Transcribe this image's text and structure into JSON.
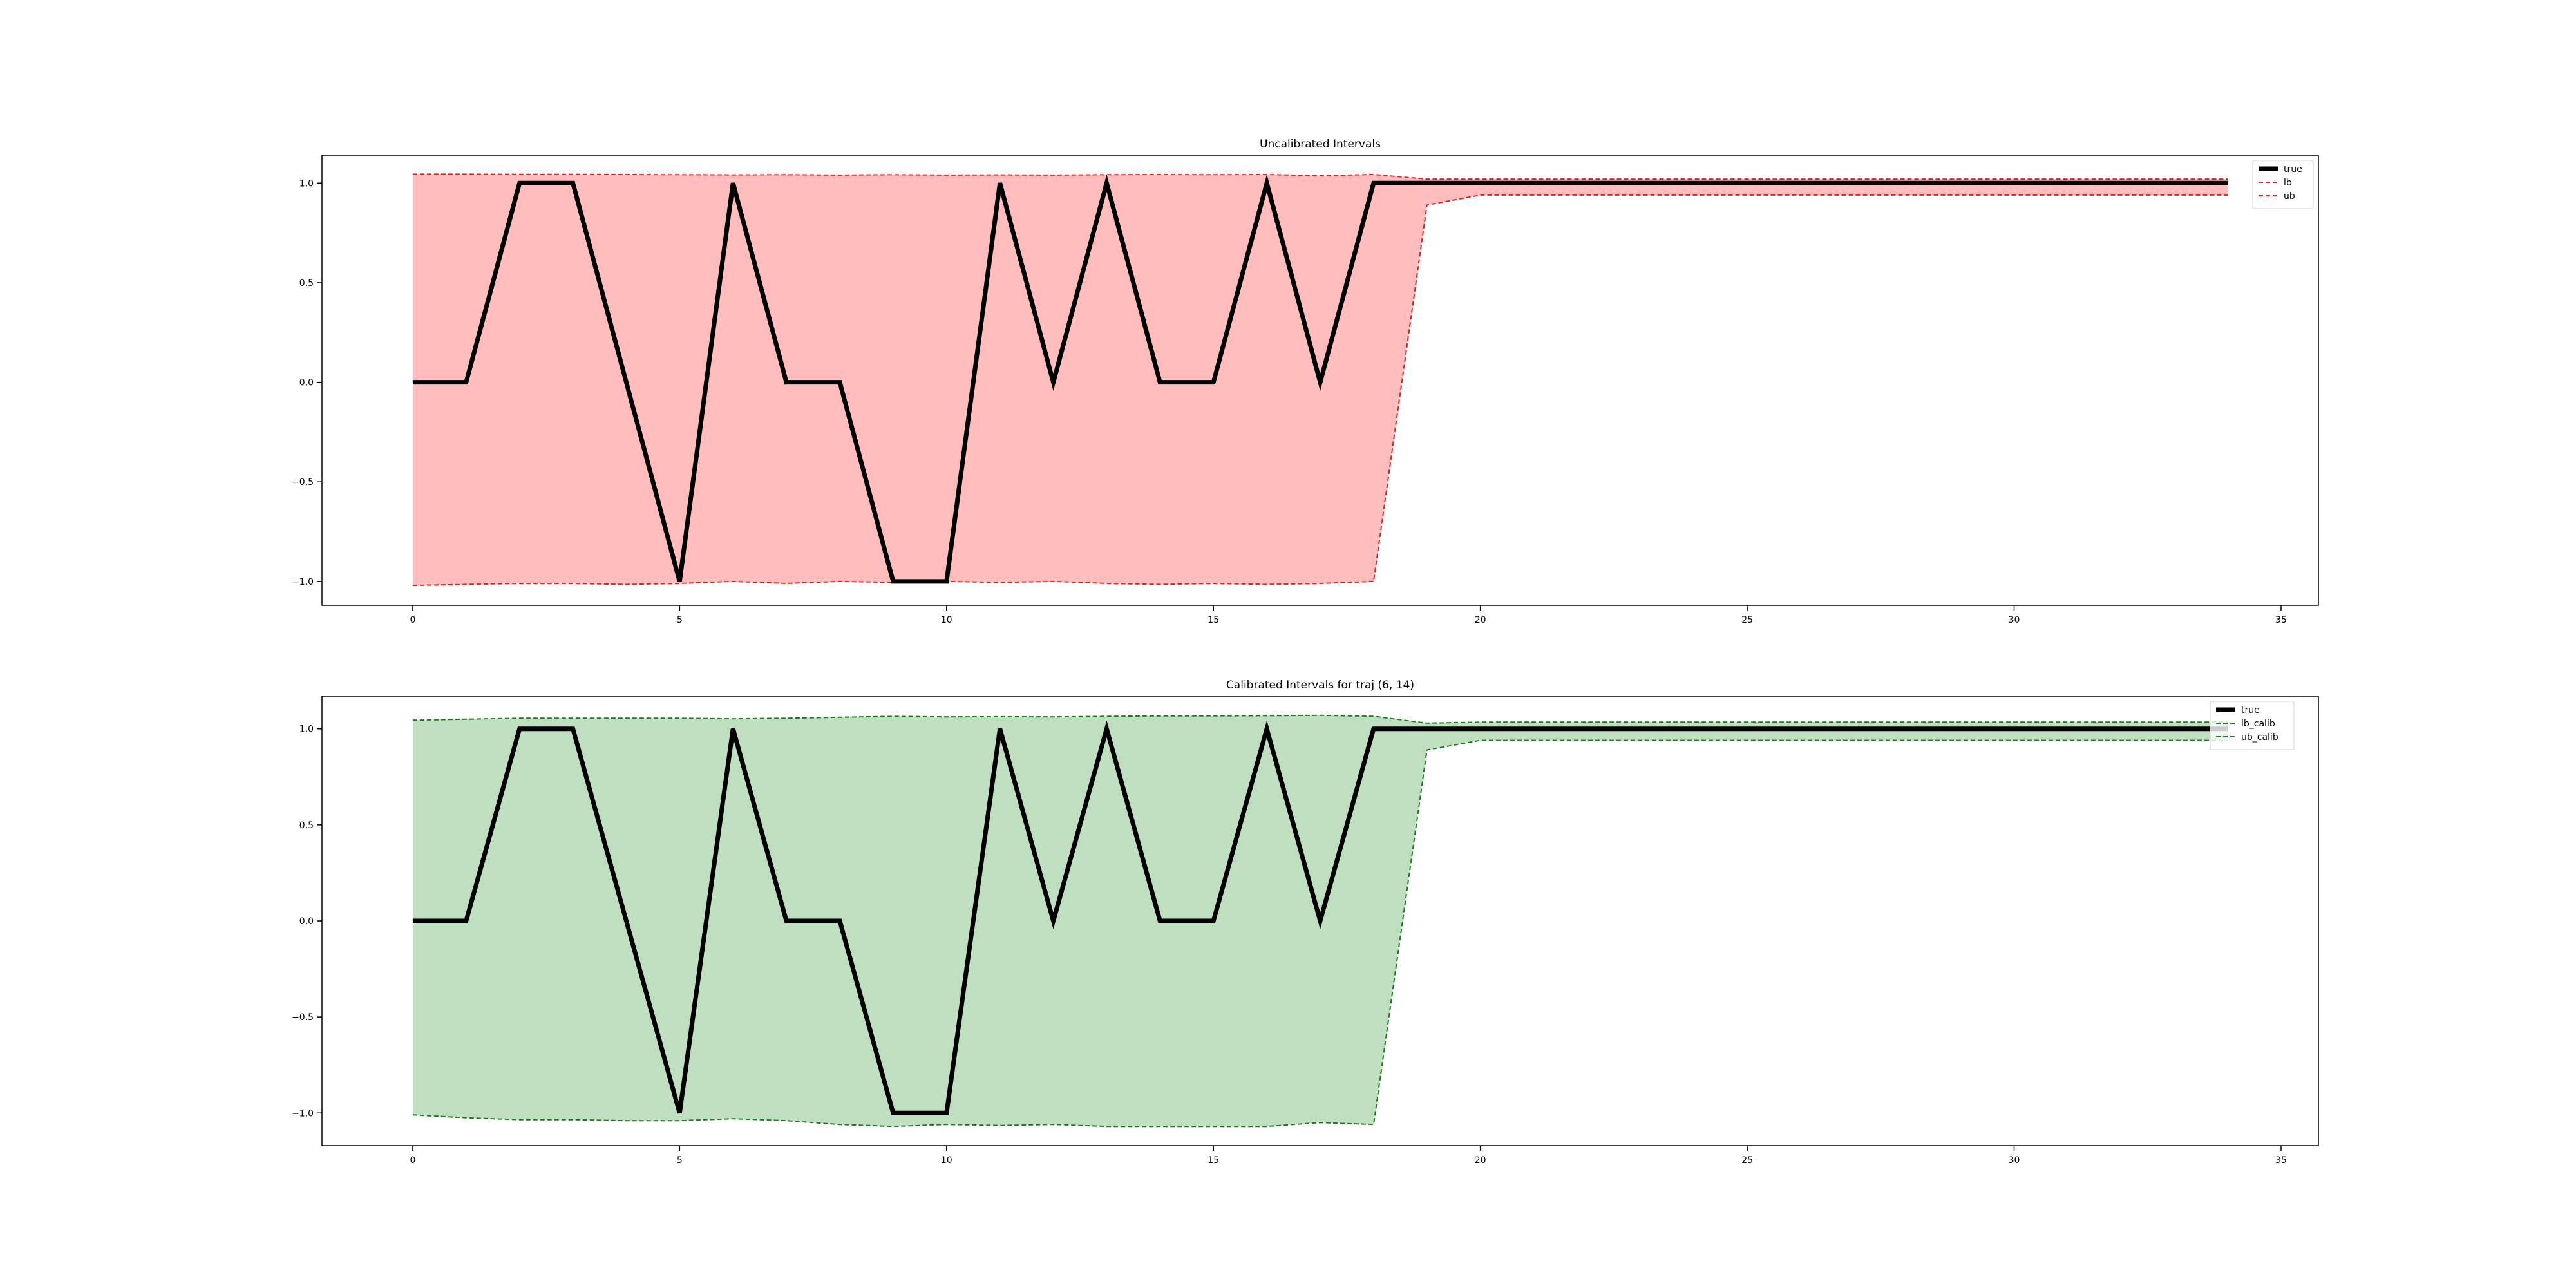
{
  "chart_data": [
    {
      "type": "line",
      "title": "Uncalibrated Intervals",
      "xlabel": "",
      "ylabel": "",
      "xlim": [
        -1.7,
        35.7
      ],
      "ylim": [
        -1.12,
        1.14
      ],
      "xticks": [
        0,
        5,
        10,
        15,
        20,
        25,
        30,
        35
      ],
      "yticks": [
        -1.0,
        -0.5,
        0.0,
        0.5,
        1.0
      ],
      "xtick_labels": [
        "0",
        "5",
        "10",
        "15",
        "20",
        "25",
        "30",
        "35"
      ],
      "ytick_labels": [
        "−1.0",
        "−0.5",
        "0.0",
        "0.5",
        "1.0"
      ],
      "grid": false,
      "legend_position": "top-right",
      "fill_color": "#ffbdbd",
      "x": [
        0,
        1,
        2,
        3,
        4,
        5,
        6,
        7,
        8,
        9,
        10,
        11,
        12,
        13,
        14,
        15,
        16,
        17,
        18,
        19,
        20,
        21,
        22,
        23,
        24,
        25,
        26,
        27,
        28,
        29,
        30,
        31,
        32,
        33,
        34
      ],
      "series": [
        {
          "name": "true",
          "color": "#000000",
          "style": "solid",
          "values": [
            0,
            0,
            1,
            1,
            0,
            -1,
            1,
            0,
            0,
            -1,
            -1,
            1,
            0,
            1,
            0,
            0,
            1,
            0,
            1,
            1,
            1,
            1,
            1,
            1,
            1,
            1,
            1,
            1,
            1,
            1,
            1,
            1,
            1,
            1,
            1
          ]
        },
        {
          "name": "lb",
          "color": "#e02020",
          "style": "dashed",
          "values": [
            -1.02,
            -1.015,
            -1.01,
            -1.01,
            -1.015,
            -1.01,
            -1.0,
            -1.01,
            -1.0,
            -1.005,
            -1.0,
            -1.005,
            -1.0,
            -1.01,
            -1.015,
            -1.01,
            -1.015,
            -1.01,
            -1.0,
            0.89,
            0.94,
            0.94,
            0.94,
            0.94,
            0.94,
            0.94,
            0.94,
            0.94,
            0.94,
            0.94,
            0.94,
            0.94,
            0.94,
            0.94,
            0.94
          ]
        },
        {
          "name": "ub",
          "color": "#e02020",
          "style": "dashed",
          "values": [
            1.045,
            1.045,
            1.044,
            1.044,
            1.043,
            1.042,
            1.041,
            1.042,
            1.04,
            1.042,
            1.04,
            1.041,
            1.04,
            1.042,
            1.043,
            1.042,
            1.043,
            1.037,
            1.043,
            1.02,
            1.02,
            1.02,
            1.02,
            1.02,
            1.02,
            1.02,
            1.02,
            1.02,
            1.02,
            1.02,
            1.02,
            1.02,
            1.02,
            1.02,
            1.02
          ]
        }
      ]
    },
    {
      "type": "line",
      "title": "Calibrated Intervals for traj (6, 14)",
      "xlabel": "",
      "ylabel": "",
      "xlim": [
        -1.7,
        35.7
      ],
      "ylim": [
        -1.17,
        1.17
      ],
      "xticks": [
        0,
        5,
        10,
        15,
        20,
        25,
        30,
        35
      ],
      "yticks": [
        -1.0,
        -0.5,
        0.0,
        0.5,
        1.0
      ],
      "xtick_labels": [
        "0",
        "5",
        "10",
        "15",
        "20",
        "25",
        "30",
        "35"
      ],
      "ytick_labels": [
        "−1.0",
        "−0.5",
        "0.0",
        "0.5",
        "1.0"
      ],
      "grid": false,
      "legend_position": "top-right",
      "fill_color": "#c0dfc0",
      "x": [
        0,
        1,
        2,
        3,
        4,
        5,
        6,
        7,
        8,
        9,
        10,
        11,
        12,
        13,
        14,
        15,
        16,
        17,
        18,
        19,
        20,
        21,
        22,
        23,
        24,
        25,
        26,
        27,
        28,
        29,
        30,
        31,
        32,
        33,
        34
      ],
      "series": [
        {
          "name": "true",
          "color": "#000000",
          "style": "solid",
          "values": [
            0,
            0,
            1,
            1,
            0,
            -1,
            1,
            0,
            0,
            -1,
            -1,
            1,
            0,
            1,
            0,
            0,
            1,
            0,
            1,
            1,
            1,
            1,
            1,
            1,
            1,
            1,
            1,
            1,
            1,
            1,
            1,
            1,
            1,
            1,
            1
          ]
        },
        {
          "name": "lb_calib",
          "color": "#1a7a1a",
          "style": "dashed",
          "values": [
            -1.01,
            -1.025,
            -1.035,
            -1.035,
            -1.04,
            -1.04,
            -1.03,
            -1.04,
            -1.06,
            -1.07,
            -1.06,
            -1.065,
            -1.06,
            -1.07,
            -1.07,
            -1.07,
            -1.07,
            -1.05,
            -1.06,
            0.89,
            0.94,
            0.94,
            0.94,
            0.94,
            0.94,
            0.94,
            0.94,
            0.94,
            0.94,
            0.94,
            0.94,
            0.94,
            0.94,
            0.94,
            0.94
          ]
        },
        {
          "name": "ub_calib",
          "color": "#1a7a1a",
          "style": "dashed",
          "values": [
            1.045,
            1.05,
            1.055,
            1.055,
            1.055,
            1.055,
            1.052,
            1.055,
            1.06,
            1.065,
            1.062,
            1.063,
            1.062,
            1.065,
            1.067,
            1.067,
            1.068,
            1.07,
            1.065,
            1.03,
            1.035,
            1.035,
            1.035,
            1.035,
            1.035,
            1.035,
            1.035,
            1.035,
            1.035,
            1.035,
            1.035,
            1.035,
            1.035,
            1.035,
            1.035
          ]
        }
      ]
    }
  ]
}
